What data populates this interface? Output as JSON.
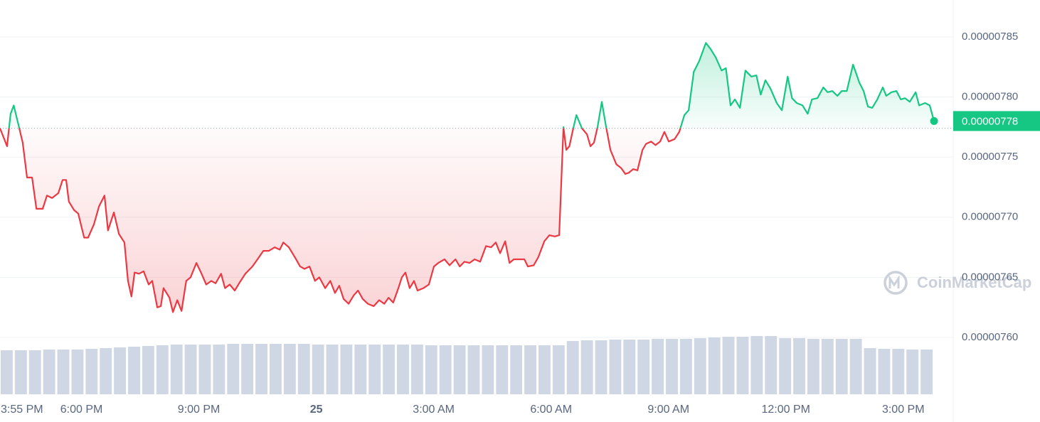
{
  "chart_data": {
    "type": "line",
    "x": [
      0,
      0.18,
      0.27,
      0.35,
      0.47,
      0.58,
      0.69,
      0.82,
      0.93,
      1.09,
      1.2,
      1.33,
      1.49,
      1.6,
      1.69,
      1.76,
      1.89,
      2,
      2.15,
      2.25,
      2.4,
      2.53,
      2.67,
      2.76,
      2.91,
      3.04,
      3.18,
      3.27,
      3.36,
      3.44,
      3.55,
      3.67,
      3.8,
      3.89,
      4.02,
      4.11,
      4.18,
      4.33,
      4.42,
      4.53,
      4.64,
      4.76,
      4.87,
      5.02,
      5.15,
      5.27,
      5.4,
      5.51,
      5.65,
      5.75,
      5.87,
      6,
      6.13,
      6.27,
      6.45,
      6.58,
      6.73,
      6.87,
      7.02,
      7.15,
      7.24,
      7.38,
      7.53,
      7.67,
      7.78,
      7.91,
      8.05,
      8.16,
      8.31,
      8.44,
      8.56,
      8.67,
      8.78,
      8.91,
      9.04,
      9.15,
      9.27,
      9.4,
      9.55,
      9.69,
      9.82,
      9.93,
      10.05,
      10.18,
      10.27,
      10.36,
      10.47,
      10.58,
      10.67,
      10.82,
      10.96,
      11.09,
      11.2,
      11.36,
      11.49,
      11.64,
      11.75,
      11.87,
      12,
      12.13,
      12.27,
      12.42,
      12.55,
      12.67,
      12.78,
      12.91,
      13.02,
      13.13,
      13.27,
      13.4,
      13.49,
      13.64,
      13.76,
      13.91,
      14.04,
      14.18,
      14.29,
      14.4,
      14.47,
      14.55,
      14.65,
      14.73,
      14.87,
      15,
      15.09,
      15.18,
      15.27,
      15.38,
      15.49,
      15.6,
      15.75,
      15.87,
      15.98,
      16.07,
      16.18,
      16.29,
      16.42,
      16.51,
      16.64,
      16.75,
      16.87,
      16.98,
      17.09,
      17.24,
      17.36,
      17.49,
      17.6,
      17.73,
      17.87,
      18.04,
      18.16,
      18.29,
      18.44,
      18.55,
      18.67,
      18.78,
      18.91,
      19.05,
      19.2,
      19.33,
      19.44,
      19.56,
      19.69,
      19.85,
      19.98,
      20.13,
      20.24,
      20.36,
      20.51,
      20.64,
      20.75,
      20.89,
      21.04,
      21.15,
      21.27,
      21.4,
      21.51,
      21.64,
      21.8,
      21.96,
      22.07,
      22.18,
      22.29,
      22.42,
      22.56,
      22.65,
      22.78,
      22.91,
      23.02,
      23.13,
      23.25,
      23.4,
      23.49,
      23.64,
      23.76,
      23.87
    ],
    "values": [
      7.774e-06,
      7.759e-06,
      7.786e-06,
      7.793e-06,
      7.777e-06,
      7.762e-06,
      7.733e-06,
      7.733e-06,
      7.707e-06,
      7.707e-06,
      7.718e-06,
      7.716e-06,
      7.72e-06,
      7.731e-06,
      7.731e-06,
      7.713e-06,
      7.706e-06,
      7.703e-06,
      7.683e-06,
      7.683e-06,
      7.694e-06,
      7.709e-06,
      7.718e-06,
      7.689e-06,
      7.704e-06,
      7.686e-06,
      7.679e-06,
      7.647e-06,
      7.634e-06,
      7.654e-06,
      7.653e-06,
      7.655e-06,
      7.644e-06,
      7.647e-06,
      7.625e-06,
      7.626e-06,
      7.641e-06,
      7.633e-06,
      7.621e-06,
      7.631e-06,
      7.622e-06,
      7.647e-06,
      7.65e-06,
      7.662e-06,
      7.653e-06,
      7.644e-06,
      7.647e-06,
      7.645e-06,
      7.653e-06,
      7.641e-06,
      7.644e-06,
      7.639e-06,
      7.646e-06,
      7.653e-06,
      7.659e-06,
      7.665e-06,
      7.672e-06,
      7.672e-06,
      7.675e-06,
      7.673e-06,
      7.679e-06,
      7.675e-06,
      7.667e-06,
      7.659e-06,
      7.657e-06,
      7.659e-06,
      7.647e-06,
      7.65e-06,
      7.641e-06,
      7.647e-06,
      7.637e-06,
      7.643e-06,
      7.632e-06,
      7.628e-06,
      7.635e-06,
      7.639e-06,
      7.632e-06,
      7.628e-06,
      7.626e-06,
      7.631e-06,
      7.628e-06,
      7.633e-06,
      7.629e-06,
      7.641e-06,
      7.65e-06,
      7.654e-06,
      7.641e-06,
      7.647e-06,
      7.639e-06,
      7.641e-06,
      7.644e-06,
      7.659e-06,
      7.662e-06,
      7.665e-06,
      7.66e-06,
      7.665e-06,
      7.659e-06,
      7.663e-06,
      7.662e-06,
      7.665e-06,
      7.663e-06,
      7.676e-06,
      7.675e-06,
      7.679e-06,
      7.67e-06,
      7.68e-06,
      7.662e-06,
      7.665e-06,
      7.665e-06,
      7.665e-06,
      7.659e-06,
      7.66e-06,
      7.667e-06,
      7.68e-06,
      7.685e-06,
      7.684e-06,
      7.685e-06,
      7.775e-06,
      7.756e-06,
      7.759e-06,
      7.774e-06,
      7.785e-06,
      7.774e-06,
      7.769e-06,
      7.759e-06,
      7.762e-06,
      7.775e-06,
      7.796e-06,
      7.775e-06,
      7.756e-06,
      7.744e-06,
      7.741e-06,
      7.736e-06,
      7.737e-06,
      7.74e-06,
      7.739e-06,
      7.756e-06,
      7.761e-06,
      7.763e-06,
      7.76e-06,
      7.763e-06,
      7.771e-06,
      7.763e-06,
      7.765e-06,
      7.771e-06,
      7.785e-06,
      7.789e-06,
      7.821e-06,
      7.83e-06,
      7.845e-06,
      7.84e-06,
      7.833e-06,
      7.822e-06,
      7.824e-06,
      7.793e-06,
      7.798e-06,
      7.791e-06,
      7.822e-06,
      7.817e-06,
      7.818e-06,
      7.802e-06,
      7.814e-06,
      7.807e-06,
      7.795e-06,
      7.789e-06,
      7.817e-06,
      7.799e-06,
      7.795e-06,
      7.793e-06,
      7.786e-06,
      7.798e-06,
      7.799e-06,
      7.808e-06,
      7.804e-06,
      7.805e-06,
      7.801e-06,
      7.805e-06,
      7.805e-06,
      7.827e-06,
      7.812e-06,
      7.805e-06,
      7.792e-06,
      7.791e-06,
      7.798e-06,
      7.808e-06,
      7.801e-06,
      7.804e-06,
      7.805e-06,
      7.798e-06,
      7.799e-06,
      7.796e-06,
      7.804e-06,
      7.793e-06,
      7.795e-06,
      7.793e-06,
      7.78e-06
    ],
    "baseline": 7.774e-06,
    "last_price": {
      "value": 7.78e-06,
      "label": "0.00000778"
    },
    "colors": {
      "up": "#16c784",
      "down": "#ea3943"
    },
    "xlim": [
      0,
      24.36
    ],
    "xticks": [
      {
        "value": 0,
        "label": "3:55 PM"
      },
      {
        "value": 2.083,
        "label": "6:00 PM"
      },
      {
        "value": 5.083,
        "label": "9:00 PM"
      },
      {
        "value": 8.083,
        "label": "25"
      },
      {
        "value": 11.083,
        "label": "3:00 AM"
      },
      {
        "value": 14.083,
        "label": "6:00 AM"
      },
      {
        "value": 17.083,
        "label": "9:00 AM"
      },
      {
        "value": 20.083,
        "label": "12:00 PM"
      },
      {
        "value": 23.083,
        "label": "3:00 PM"
      }
    ],
    "ylim": [
      7.5527e-06,
      7.8807e-06
    ],
    "yticks": [
      {
        "value": 7.6e-06,
        "label": "0.00000760"
      },
      {
        "value": 7.65e-06,
        "label": "0.00000765"
      },
      {
        "value": 7.7e-06,
        "label": "0.00000770"
      },
      {
        "value": 7.75e-06,
        "label": "0.00000775"
      },
      {
        "value": 7.8e-06,
        "label": "0.00000780"
      },
      {
        "value": 7.85e-06,
        "label": "0.00000785"
      }
    ],
    "grid": true,
    "volume": {
      "color": "#cfd6e4",
      "ylim": [
        0,
        100
      ],
      "values": [
        62,
        62,
        62,
        63,
        63,
        63,
        64,
        65,
        66,
        67,
        68,
        69,
        70,
        70,
        70,
        70,
        71,
        71,
        71,
        71,
        71,
        71,
        70,
        70,
        70,
        70,
        70,
        70,
        70,
        70,
        69,
        69,
        69,
        69,
        69,
        69,
        69,
        69,
        69,
        69,
        75,
        76,
        76,
        77,
        77,
        77,
        78,
        78,
        78,
        79,
        80,
        81,
        81,
        82,
        82,
        79,
        79,
        78,
        78,
        78,
        78,
        65,
        64,
        64,
        63,
        63
      ]
    },
    "watermark": "CoinMarketCap"
  }
}
